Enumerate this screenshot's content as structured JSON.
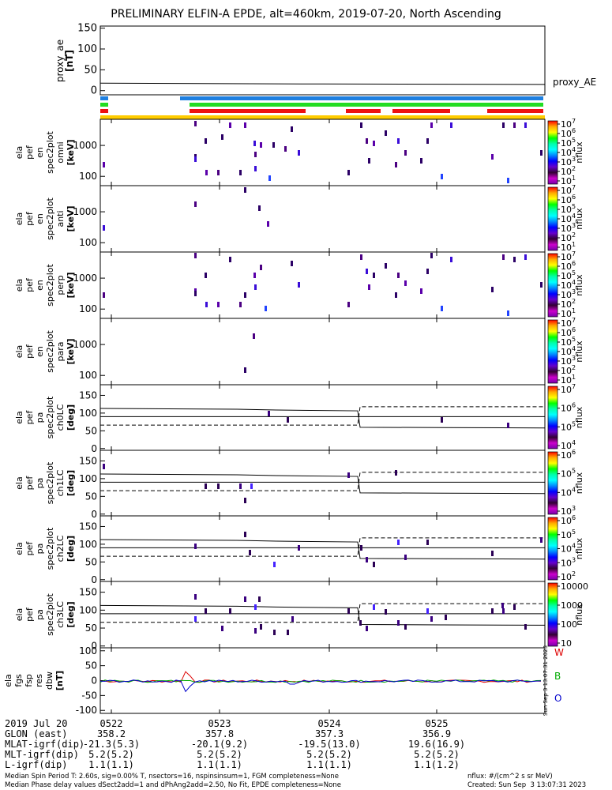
{
  "title": "PRELIMINARY ELFIN-A EPDE, alt=460km, 2019-07-20, North Ascending",
  "chart_data": [
    {
      "type": "line",
      "ylabel": "proxy_ae [nT]",
      "yticks": [
        "150",
        "100",
        "50",
        "0"
      ],
      "ylim": [
        -10,
        155
      ],
      "series": [
        {
          "name": "proxy_AE",
          "x": [
            0,
            0.5,
            1
          ],
          "values": [
            18,
            16,
            15
          ]
        }
      ]
    },
    {
      "type": "heatmap",
      "ylabel": [
        "ela",
        "pef",
        "en",
        "spec2plot",
        "omni",
        "[keV]"
      ],
      "yticks": [
        "1000",
        "100"
      ],
      "colorbar": {
        "label": "nflux",
        "ticks": [
          "10^7",
          "10^6",
          "10^5",
          "10^4",
          "10^3",
          "10^2",
          "10^1"
        ]
      }
    },
    {
      "type": "heatmap",
      "ylabel": [
        "ela",
        "pef",
        "en",
        "spec2plot",
        "anti",
        "[keV]"
      ],
      "yticks": [
        "1000",
        "100"
      ],
      "colorbar": {
        "label": "nflux",
        "ticks": [
          "10^7",
          "10^6",
          "10^5",
          "10^4",
          "10^3",
          "10^2",
          "10^1"
        ]
      }
    },
    {
      "type": "heatmap",
      "ylabel": [
        "ela",
        "pef",
        "en",
        "spec2plot",
        "perp",
        "[keV]"
      ],
      "yticks": [
        "1000",
        "100"
      ],
      "colorbar": {
        "label": "nflux",
        "ticks": [
          "10^7",
          "10^6",
          "10^5",
          "10^4",
          "10^3",
          "10^2",
          "10^1"
        ]
      }
    },
    {
      "type": "heatmap",
      "ylabel": [
        "ela",
        "pef",
        "en",
        "spec2plot",
        "para",
        "[keV]"
      ],
      "yticks": [
        "1000",
        "100"
      ],
      "colorbar": {
        "label": "nflux",
        "ticks": [
          "10^7",
          "10^6",
          "10^5",
          "10^4",
          "10^3",
          "10^2",
          "10^1"
        ]
      }
    },
    {
      "type": "heatmap",
      "ylabel": [
        "ela",
        "pef",
        "pa",
        "spec2plot",
        "ch0LC",
        "[deg]"
      ],
      "yticks": [
        "150",
        "100",
        "50",
        "0"
      ],
      "colorbar": {
        "label": "nflux",
        "ticks": [
          "10^7",
          "10^6",
          "10^5",
          "10^4"
        ]
      }
    },
    {
      "type": "heatmap",
      "ylabel": [
        "ela",
        "pef",
        "pa",
        "spec2plot",
        "ch1LC",
        "[deg]"
      ],
      "yticks": [
        "150",
        "100",
        "50",
        "0"
      ],
      "colorbar": {
        "label": "nflux",
        "ticks": [
          "10^6",
          "10^5",
          "10^4",
          "10^3"
        ]
      }
    },
    {
      "type": "heatmap",
      "ylabel": [
        "ela",
        "pef",
        "pa",
        "spec2plot",
        "ch2LC",
        "[deg]"
      ],
      "yticks": [
        "150",
        "100",
        "50",
        "0"
      ],
      "colorbar": {
        "label": "nflux",
        "ticks": [
          "10^6",
          "10^5",
          "10^4",
          "10^3",
          "10^2"
        ]
      }
    },
    {
      "type": "heatmap",
      "ylabel": [
        "ela",
        "pef",
        "pa",
        "spec2plot",
        "ch3LC",
        "[deg]"
      ],
      "yticks": [
        "150",
        "100",
        "50",
        "0"
      ],
      "colorbar": {
        "label": "nflux",
        "ticks": [
          "10000",
          "1000",
          "100",
          "10"
        ]
      }
    },
    {
      "type": "line",
      "ylabel": [
        "ela",
        "fgs",
        "fsp",
        "res",
        "dbw",
        "[nT]"
      ],
      "yticks": [
        "100",
        "50",
        "0",
        "-50",
        "-100"
      ],
      "ylim": [
        -110,
        110
      ],
      "legend": [
        "W",
        "B",
        "O"
      ],
      "colors": [
        "#dd0000",
        "#00aa00",
        "#0000cc"
      ],
      "side_label": "Sun Sep 3 13:07:31 2023"
    }
  ],
  "xaxis": {
    "row_labels": [
      "2019 Jul 20",
      "GLON (east)",
      "MLAT-igrf(dip)",
      "MLT-igrf(dip)",
      "L-igrf(dip)"
    ],
    "ticks": [
      {
        "time": "0522",
        "glon": "358.2",
        "mlat": "-21.3(5.3)",
        "mlt": "5.2(5.2)",
        "l": "1.1(1.1)"
      },
      {
        "time": "0523",
        "glon": "357.8",
        "mlat": "-20.1(9.2)",
        "mlt": "5.2(5.2)",
        "l": "1.1(1.1)"
      },
      {
        "time": "0524",
        "glon": "357.3",
        "mlat": "-19.5(13.0)",
        "mlt": "5.2(5.2)",
        "l": "1.1(1.1)"
      },
      {
        "time": "0525",
        "glon": "356.9",
        "mlat": "19.6(16.9)",
        "mlt": "5.2(5.2)",
        "l": "1.1(1.2)"
      }
    ]
  },
  "footer": {
    "line1": "Median Spin Period T: 2.60s, sig=0.00% T, nsectors=16, nspinsinsum=1, FGM completeness=None",
    "line2": "Median Phase delay values dSect2add=1 and dPhAng2add=2.50, No Fit, EPDE completeness=None",
    "units": "nflux: #/(cm^2 s sr MeV)",
    "created": "Created: Sun Sep  3 13:07:31 2023"
  }
}
